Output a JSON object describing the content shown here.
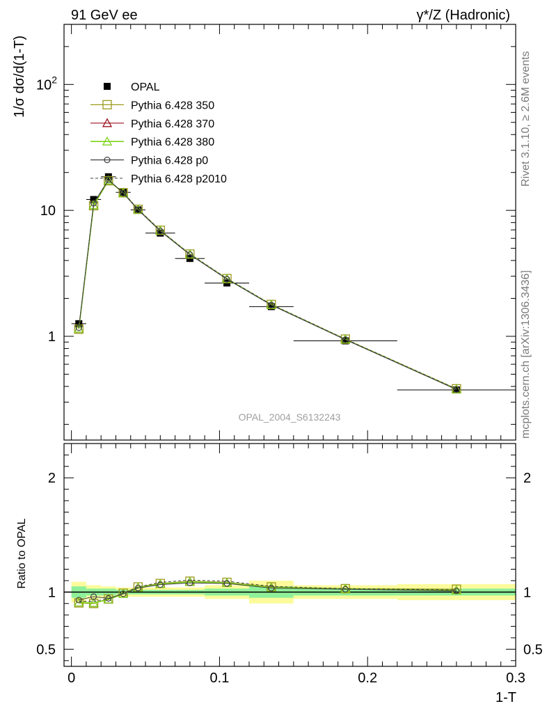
{
  "header": {
    "left_title": "91 GeV ee",
    "right_title": "γ*/Z (Hadronic)"
  },
  "side": {
    "rivet": "Rivet 3.1.10, ≥ 2.6M events",
    "mcplots": "mcplots.cern.ch [arXiv:1306.3436]"
  },
  "watermark": "OPAL_2004_S6132243",
  "legend": [
    {
      "label": "OPAL",
      "marker": "filled-square",
      "color": "#000000"
    },
    {
      "label": "Pythia 6.428 350",
      "marker": "open-square",
      "color": "#9a9a1a"
    },
    {
      "label": "Pythia 6.428 370",
      "marker": "open-triangle",
      "color": "#9b1020"
    },
    {
      "label": "Pythia 6.428 380",
      "marker": "open-triangle",
      "color": "#7ed31a"
    },
    {
      "label": "Pythia 6.428 p0",
      "marker": "open-circle",
      "color": "#404040"
    },
    {
      "label": "Pythia 6.428 p2010",
      "marker": "dashed-line",
      "color": "#404040"
    }
  ],
  "chart_data": [
    {
      "type": "line",
      "panel": "main",
      "ylabel": "1/σ dσ/d(1-T)",
      "yscale": "log",
      "ylim": [
        0.15,
        300
      ],
      "xlim": [
        -0.005,
        0.3
      ],
      "yticks": [
        {
          "value": 1,
          "label": "1"
        },
        {
          "value": 10,
          "label": "10"
        },
        {
          "value": 100,
          "label": "10",
          "sup": "2"
        }
      ],
      "x": [
        0.005,
        0.015,
        0.025,
        0.035,
        0.045,
        0.06,
        0.08,
        0.105,
        0.135,
        0.185,
        0.26
      ],
      "data": {
        "name": "OPAL",
        "values": [
          1.26,
          12.2,
          18.5,
          13.9,
          10.1,
          6.6,
          4.15,
          2.65,
          1.72,
          0.92,
          0.375
        ],
        "xerr": [
          0.005,
          0.005,
          0.005,
          0.005,
          0.005,
          0.01,
          0.01,
          0.015,
          0.015,
          0.035,
          0.04
        ]
      },
      "series": [
        {
          "name": "Pythia 6.428 350",
          "values": [
            1.14,
            10.9,
            17.2,
            13.8,
            10.2,
            6.95,
            4.5,
            2.87,
            1.79,
            0.95,
            0.383
          ]
        },
        {
          "name": "Pythia 6.428 370",
          "values": [
            1.15,
            11.0,
            17.3,
            13.8,
            10.15,
            6.9,
            4.48,
            2.86,
            1.78,
            0.945,
            0.38
          ]
        },
        {
          "name": "Pythia 6.428 380",
          "values": [
            1.15,
            11.0,
            17.3,
            13.8,
            10.15,
            6.9,
            4.48,
            2.86,
            1.78,
            0.945,
            0.38
          ]
        },
        {
          "name": "Pythia 6.428 p0",
          "values": [
            1.17,
            11.4,
            17.5,
            13.7,
            10.1,
            6.85,
            4.45,
            2.84,
            1.77,
            0.94,
            0.378
          ]
        },
        {
          "name": "Pythia 6.428 p2010",
          "values": [
            1.16,
            11.2,
            17.4,
            13.9,
            10.2,
            6.95,
            4.5,
            2.88,
            1.79,
            0.95,
            0.382
          ]
        }
      ]
    },
    {
      "type": "line",
      "panel": "ratio",
      "xlabel": "1-T",
      "ylabel": "Ratio to OPAL",
      "ylim": [
        0.35,
        2.3
      ],
      "xlim": [
        -0.005,
        0.3
      ],
      "yticks": [
        0.5,
        1,
        2
      ],
      "xticks": [
        0,
        0.1,
        0.2,
        0.3
      ],
      "x": [
        0.005,
        0.015,
        0.025,
        0.035,
        0.045,
        0.06,
        0.08,
        0.105,
        0.135,
        0.185,
        0.26
      ],
      "bands": {
        "bins": [
          [
            0,
            0.01
          ],
          [
            0.01,
            0.02
          ],
          [
            0.02,
            0.03
          ],
          [
            0.03,
            0.04
          ],
          [
            0.04,
            0.05
          ],
          [
            0.05,
            0.07
          ],
          [
            0.07,
            0.09
          ],
          [
            0.09,
            0.12
          ],
          [
            0.12,
            0.15
          ],
          [
            0.15,
            0.22
          ],
          [
            0.22,
            0.3
          ]
        ],
        "stat": [
          0.05,
          0.03,
          0.03,
          0.02,
          0.02,
          0.02,
          0.02,
          0.03,
          0.05,
          0.03,
          0.03
        ],
        "total": [
          0.09,
          0.06,
          0.05,
          0.04,
          0.04,
          0.04,
          0.04,
          0.06,
          0.1,
          0.06,
          0.07
        ]
      },
      "series": [
        {
          "name": "Pythia 6.428 350",
          "values": [
            0.905,
            0.9,
            0.94,
            0.99,
            1.045,
            1.075,
            1.095,
            1.085,
            1.045,
            1.03,
            1.025
          ]
        },
        {
          "name": "Pythia 6.428 370",
          "values": [
            0.91,
            0.905,
            0.935,
            0.985,
            1.04,
            1.07,
            1.09,
            1.08,
            1.04,
            1.03,
            1.015
          ]
        },
        {
          "name": "Pythia 6.428 380",
          "values": [
            0.91,
            0.905,
            0.935,
            0.985,
            1.04,
            1.07,
            1.09,
            1.08,
            1.04,
            1.03,
            1.015
          ]
        },
        {
          "name": "Pythia 6.428 p0",
          "values": [
            0.93,
            0.96,
            0.945,
            0.985,
            1.035,
            1.065,
            1.08,
            1.075,
            1.035,
            1.025,
            1.01
          ]
        },
        {
          "name": "Pythia 6.428 p2010",
          "values": [
            0.92,
            0.92,
            0.94,
            0.99,
            1.045,
            1.085,
            1.105,
            1.095,
            1.05,
            1.03,
            1.02
          ]
        }
      ]
    }
  ]
}
